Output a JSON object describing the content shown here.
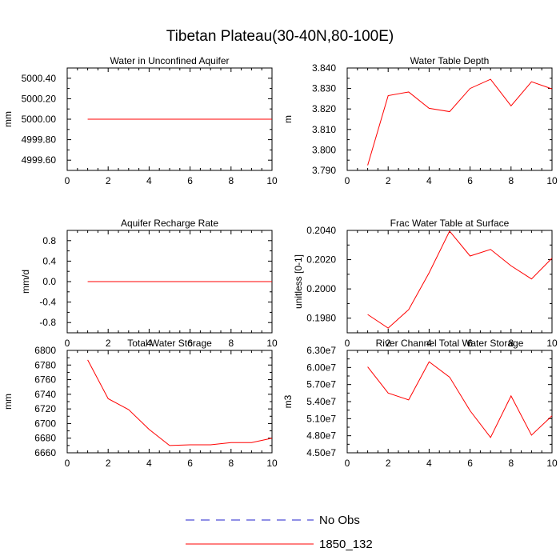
{
  "page_title": "Tibetan Plateau(30-40N,80-100E)",
  "legend": {
    "items": [
      {
        "label": "No Obs",
        "color": "#2222cc",
        "dash": true
      },
      {
        "label": "1850_132",
        "color": "#ff0000",
        "dash": false
      }
    ]
  },
  "chart_data": [
    {
      "type": "line",
      "title": "Water in Unconfined Aquifer",
      "ylabel": "mm",
      "xlim": [
        0,
        10
      ],
      "ylim": [
        4999.5,
        5000.5
      ],
      "xticks": [
        0,
        2,
        4,
        6,
        8,
        10
      ],
      "yticks": [
        4999.6,
        4999.8,
        5000.0,
        5000.2,
        5000.4
      ],
      "ytick_labels": [
        "4999.60",
        "4999.80",
        "5000.00",
        "5000.20",
        "5000.40"
      ],
      "series": [
        {
          "name": "1850_132",
          "color": "#ff0000",
          "x": [
            1,
            2,
            3,
            4,
            5,
            6,
            7,
            8,
            9,
            10
          ],
          "values": [
            5000.0,
            5000.0,
            5000.0,
            5000.0,
            5000.0,
            5000.0,
            5000.0,
            5000.0,
            5000.0,
            5000.0
          ]
        }
      ]
    },
    {
      "type": "line",
      "title": "Water Table Depth",
      "ylabel": "m",
      "xlim": [
        0,
        10
      ],
      "ylim": [
        3.79,
        3.84
      ],
      "xticks": [
        0,
        2,
        4,
        6,
        8,
        10
      ],
      "yticks": [
        3.79,
        3.8,
        3.81,
        3.82,
        3.83,
        3.84
      ],
      "ytick_labels": [
        "3.790",
        "3.800",
        "3.810",
        "3.820",
        "3.830",
        "3.840"
      ],
      "series": [
        {
          "name": "1850_132",
          "color": "#ff0000",
          "x": [
            1,
            2,
            3,
            4,
            5,
            6,
            7,
            8,
            9,
            10
          ],
          "values": [
            3.7925,
            3.8265,
            3.8283,
            3.8203,
            3.8187,
            3.83,
            3.8345,
            3.8215,
            3.8333,
            3.8298
          ]
        }
      ]
    },
    {
      "type": "line",
      "title": "Aquifer Recharge Rate",
      "ylabel": "mm/d",
      "xlim": [
        0,
        10
      ],
      "ylim": [
        -1.0,
        1.0
      ],
      "xticks": [
        0,
        2,
        4,
        6,
        8,
        10
      ],
      "yticks": [
        -0.8,
        -0.4,
        0.0,
        0.4,
        0.8
      ],
      "ytick_labels": [
        "-0.8",
        "-0.4",
        "0.0",
        "0.4",
        "0.8"
      ],
      "series": [
        {
          "name": "1850_132",
          "color": "#ff0000",
          "x": [
            1,
            2,
            3,
            4,
            5,
            6,
            7,
            8,
            9,
            10
          ],
          "values": [
            0,
            0,
            0,
            0,
            0,
            0,
            0,
            0,
            0,
            0
          ]
        }
      ]
    },
    {
      "type": "line",
      "title": "Frac Water Table at Surface",
      "ylabel": "unitless [0-1]",
      "xlim": [
        0,
        10
      ],
      "ylim": [
        0.197,
        0.204
      ],
      "xticks": [
        0,
        2,
        4,
        6,
        8,
        10
      ],
      "yticks": [
        0.198,
        0.2,
        0.202,
        0.204
      ],
      "ytick_labels": [
        "0.1980",
        "0.2000",
        "0.2020",
        "0.2040"
      ],
      "series": [
        {
          "name": "1850_132",
          "color": "#ff0000",
          "x": [
            1,
            2,
            3,
            4,
            5,
            6,
            7,
            8,
            9,
            10
          ],
          "values": [
            0.19825,
            0.19732,
            0.19858,
            0.2011,
            0.20395,
            0.20225,
            0.2027,
            0.20158,
            0.20068,
            0.2021
          ]
        }
      ]
    },
    {
      "type": "line",
      "title": "Total Water Storage",
      "ylabel": "mm",
      "xlim": [
        0,
        10
      ],
      "ylim": [
        6660,
        6800
      ],
      "xticks": [
        0,
        2,
        4,
        6,
        8,
        10
      ],
      "yticks": [
        6660,
        6680,
        6700,
        6720,
        6740,
        6760,
        6780,
        6800
      ],
      "ytick_labels": [
        "6660",
        "6680",
        "6700",
        "6720",
        "6740",
        "6760",
        "6780",
        "6800"
      ],
      "series": [
        {
          "name": "1850_132",
          "color": "#ff0000",
          "x": [
            1,
            2,
            3,
            4,
            5,
            6,
            7,
            8,
            9,
            10
          ],
          "values": [
            6787,
            6734,
            6719,
            6692,
            6670,
            6671,
            6671,
            6674,
            6674,
            6680
          ]
        }
      ]
    },
    {
      "type": "line",
      "title": "River Channel Total Water Storage",
      "ylabel": "m3",
      "xlim": [
        0,
        10
      ],
      "ylim": [
        45000000,
        63000000
      ],
      "xticks": [
        0,
        2,
        4,
        6,
        8,
        10
      ],
      "yticks": [
        45000000,
        48000000,
        51000000,
        54000000,
        57000000,
        60000000,
        63000000
      ],
      "ytick_labels": [
        "4.50e7",
        "4.80e7",
        "5.10e7",
        "5.40e7",
        "5.70e7",
        "6.00e7",
        "6.30e7"
      ],
      "series": [
        {
          "name": "1850_132",
          "color": "#ff0000",
          "x": [
            1,
            2,
            3,
            4,
            5,
            6,
            7,
            8,
            9,
            10
          ],
          "values": [
            60100000,
            55500000,
            54300000,
            61000000,
            58300000,
            52400000,
            47700000,
            55000000,
            48100000,
            51500000
          ]
        }
      ]
    }
  ]
}
